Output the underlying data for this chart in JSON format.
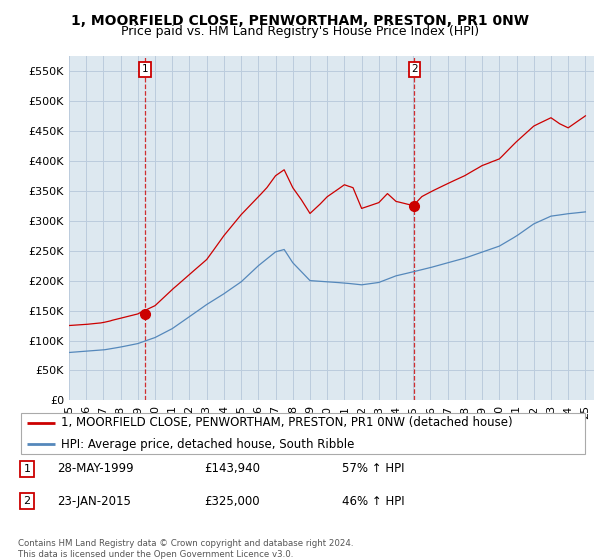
{
  "title": "1, MOORFIELD CLOSE, PENWORTHAM, PRESTON, PR1 0NW",
  "subtitle": "Price paid vs. HM Land Registry's House Price Index (HPI)",
  "ylim": [
    0,
    575000
  ],
  "yticks": [
    0,
    50000,
    100000,
    150000,
    200000,
    250000,
    300000,
    350000,
    400000,
    450000,
    500000,
    550000
  ],
  "xlim_start": 1995.0,
  "xlim_end": 2025.5,
  "sale1_date": 1999.4,
  "sale1_price": 143940,
  "sale1_label": "1",
  "sale2_date": 2015.07,
  "sale2_price": 325000,
  "sale2_label": "2",
  "line_color_red": "#cc0000",
  "line_color_blue": "#5588bb",
  "marker_color_red": "#cc0000",
  "vline_color": "#cc0000",
  "bg_fill_color": "#dde8f0",
  "legend_line1": "1, MOORFIELD CLOSE, PENWORTHAM, PRESTON, PR1 0NW (detached house)",
  "legend_line2": "HPI: Average price, detached house, South Ribble",
  "annot1_num": "1",
  "annot1_date": "28-MAY-1999",
  "annot1_price": "£143,940",
  "annot1_hpi": "57% ↑ HPI",
  "annot2_num": "2",
  "annot2_date": "23-JAN-2015",
  "annot2_price": "£325,000",
  "annot2_hpi": "46% ↑ HPI",
  "footer": "Contains HM Land Registry data © Crown copyright and database right 2024.\nThis data is licensed under the Open Government Licence v3.0.",
  "bg_color": "#ffffff",
  "grid_color": "#bbccdd",
  "title_fontsize": 10,
  "subtitle_fontsize": 9,
  "tick_fontsize": 8,
  "legend_fontsize": 8.5
}
